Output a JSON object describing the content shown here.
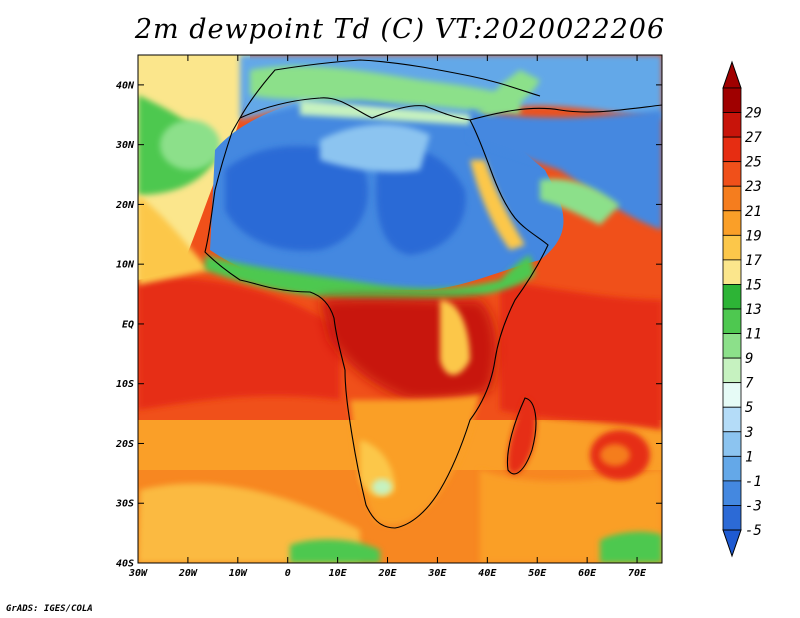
{
  "title": "2m dewpoint Td (C) VT:2020022206",
  "footer": "GrADS: IGES/COLA",
  "map": {
    "projection": "latlon",
    "lon_range": [
      -30,
      75
    ],
    "lat_range": [
      -40,
      45
    ],
    "lon_ticks": [
      {
        "value": -30,
        "label": "30W"
      },
      {
        "value": -20,
        "label": "20W"
      },
      {
        "value": -10,
        "label": "10W"
      },
      {
        "value": 0,
        "label": "0"
      },
      {
        "value": 10,
        "label": "10E"
      },
      {
        "value": 20,
        "label": "20E"
      },
      {
        "value": 30,
        "label": "30E"
      },
      {
        "value": 40,
        "label": "40E"
      },
      {
        "value": 50,
        "label": "50E"
      },
      {
        "value": 60,
        "label": "60E"
      },
      {
        "value": 70,
        "label": "70E"
      }
    ],
    "lat_ticks": [
      {
        "value": 40,
        "label": "40N"
      },
      {
        "value": 30,
        "label": "30N"
      },
      {
        "value": 20,
        "label": "20N"
      },
      {
        "value": 10,
        "label": "10N"
      },
      {
        "value": 0,
        "label": "EQ"
      },
      {
        "value": -10,
        "label": "10S"
      },
      {
        "value": -20,
        "label": "20S"
      },
      {
        "value": -30,
        "label": "30S"
      },
      {
        "value": -40,
        "label": "40S"
      }
    ]
  },
  "colorbar": {
    "levels": [
      {
        "label": "29",
        "color": "#a00000"
      },
      {
        "label": "27",
        "color": "#c8140a"
      },
      {
        "label": "25",
        "color": "#e62d12"
      },
      {
        "label": "23",
        "color": "#f0501a"
      },
      {
        "label": "21",
        "color": "#f57d1e"
      },
      {
        "label": "19",
        "color": "#fa9f28"
      },
      {
        "label": "17",
        "color": "#fcc74a"
      },
      {
        "label": "15",
        "color": "#fbe68c"
      },
      {
        "label": "13",
        "color": "#2db436"
      },
      {
        "label": "11",
        "color": "#4ec850"
      },
      {
        "label": "9",
        "color": "#8ce08a"
      },
      {
        "label": "7",
        "color": "#c6f2c0"
      },
      {
        "label": "5",
        "color": "#e6fbf6"
      },
      {
        "label": "3",
        "color": "#b4dcf8"
      },
      {
        "label": "1",
        "color": "#8cc4f0"
      },
      {
        "label": "-1",
        "color": "#64a8e8"
      },
      {
        "label": "-3",
        "color": "#4488e0"
      },
      {
        "label": "-5",
        "color": "#2c6ad6"
      }
    ],
    "below_color": "#1e5ad2"
  }
}
